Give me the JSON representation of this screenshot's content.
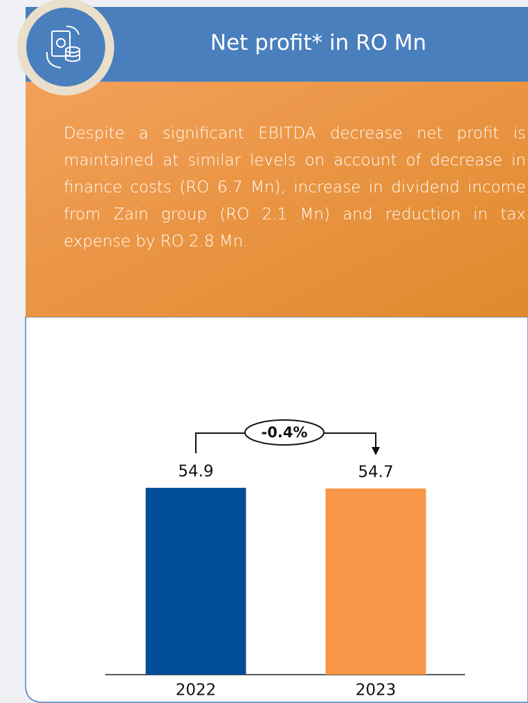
{
  "chart_data": {
    "type": "bar",
    "title": "Net profit* in RO Mn",
    "description": "Despite a significant EBITDA decrease net profit is maintained at similar levels on account of decrease in finance costs (RO 6.7 Mn), increase in dividend income from Zain group (RO 2.1 Mn) and reduction in tax expense by RO 2.8 Mn.",
    "categories": [
      "2022",
      "2023"
    ],
    "values": [
      54.9,
      54.7
    ],
    "colors": [
      "#004d99",
      "#f79646"
    ],
    "annotation": "-0.4%",
    "ylim": [
      0,
      55
    ]
  }
}
